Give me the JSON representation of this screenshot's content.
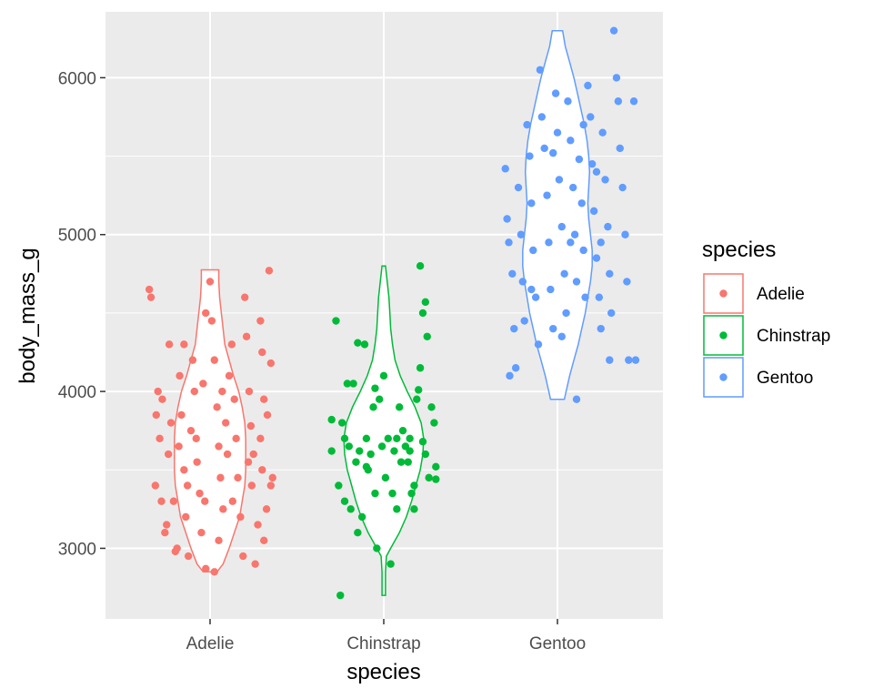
{
  "chart_data": {
    "type": "violin",
    "title": "",
    "xlabel": "species",
    "ylabel": "body_mass_g",
    "categories": [
      "Adelie",
      "Chinstrap",
      "Gentoo"
    ],
    "ylim": [
      2550,
      6420
    ],
    "yticks": [
      3000,
      4000,
      5000,
      6000
    ],
    "grid": true,
    "background": "#ebebeb",
    "legend": {
      "title": "species",
      "position": "right",
      "entries": [
        "Adelie",
        "Chinstrap",
        "Gentoo"
      ]
    },
    "colors": {
      "Adelie": "#F8766D",
      "Chinstrap": "#00BA38",
      "Gentoo": "#619CFF"
    },
    "series": [
      {
        "name": "Adelie",
        "violin": {
          "y": [
            2850,
            2900,
            3000,
            3100,
            3200,
            3300,
            3400,
            3500,
            3600,
            3700,
            3800,
            3900,
            4000,
            4100,
            4200,
            4300,
            4400,
            4500,
            4600,
            4700,
            4775
          ],
          "halfwidth": [
            0.08,
            0.15,
            0.22,
            0.28,
            0.34,
            0.37,
            0.4,
            0.41,
            0.41,
            0.41,
            0.4,
            0.37,
            0.33,
            0.27,
            0.22,
            0.17,
            0.15,
            0.13,
            0.11,
            0.1,
            0.1
          ]
        },
        "points": [
          [
            -0.7,
            4650
          ],
          [
            -0.68,
            4600
          ],
          [
            -0.6,
            4000
          ],
          [
            -0.55,
            3950
          ],
          [
            -0.58,
            3700
          ],
          [
            -0.63,
            3400
          ],
          [
            -0.5,
            3150
          ],
          [
            -0.52,
            3100
          ],
          [
            -0.45,
            3800
          ],
          [
            -0.48,
            3600
          ],
          [
            -0.42,
            3300
          ],
          [
            -0.38,
            3000
          ],
          [
            -0.4,
            2980
          ],
          [
            -0.35,
            4100
          ],
          [
            -0.3,
            4300
          ],
          [
            -0.33,
            3850
          ],
          [
            -0.3,
            3500
          ],
          [
            -0.28,
            3200
          ],
          [
            -0.25,
            2950
          ],
          [
            -0.2,
            4200
          ],
          [
            -0.18,
            4000
          ],
          [
            -0.22,
            3750
          ],
          [
            -0.15,
            3550
          ],
          [
            -0.12,
            3350
          ],
          [
            -0.1,
            3100
          ],
          [
            -0.05,
            2870
          ],
          [
            0.0,
            4700
          ],
          [
            0.02,
            4450
          ],
          [
            0.05,
            4200
          ],
          [
            0.08,
            3900
          ],
          [
            0.1,
            3650
          ],
          [
            0.12,
            3450
          ],
          [
            0.15,
            3250
          ],
          [
            0.1,
            3050
          ],
          [
            0.05,
            2850
          ],
          [
            -0.05,
            4500
          ],
          [
            -0.08,
            4050
          ],
          [
            0.18,
            3800
          ],
          [
            0.2,
            3600
          ],
          [
            0.22,
            4100
          ],
          [
            0.25,
            4300
          ],
          [
            0.28,
            3950
          ],
          [
            0.3,
            3700
          ],
          [
            0.32,
            3450
          ],
          [
            0.35,
            3200
          ],
          [
            0.38,
            2950
          ],
          [
            0.4,
            4600
          ],
          [
            0.42,
            4350
          ],
          [
            0.45,
            4000
          ],
          [
            0.47,
            3780
          ],
          [
            0.5,
            3600
          ],
          [
            0.48,
            3400
          ],
          [
            0.55,
            3150
          ],
          [
            0.52,
            2900
          ],
          [
            0.58,
            4450
          ],
          [
            0.6,
            4250
          ],
          [
            0.62,
            3950
          ],
          [
            0.58,
            3700
          ],
          [
            0.6,
            3500
          ],
          [
            0.65,
            3250
          ],
          [
            0.62,
            3050
          ],
          [
            0.68,
            4770
          ],
          [
            0.7,
            4180
          ],
          [
            0.72,
            3450
          ],
          [
            0.7,
            3400
          ],
          [
            -0.62,
            3850
          ],
          [
            -0.56,
            3300
          ],
          [
            -0.47,
            4300
          ],
          [
            -0.36,
            3650
          ],
          [
            -0.26,
            3400
          ],
          [
            -0.16,
            3700
          ],
          [
            -0.06,
            3300
          ],
          [
            0.14,
            4000
          ],
          [
            0.26,
            3300
          ],
          [
            0.44,
            3550
          ],
          [
            0.66,
            3850
          ]
        ]
      },
      {
        "name": "Chinstrap",
        "violin": {
          "y": [
            2700,
            2850,
            2950,
            3000,
            3100,
            3200,
            3300,
            3400,
            3500,
            3600,
            3700,
            3800,
            3900,
            4000,
            4100,
            4200,
            4300,
            4400,
            4500,
            4600,
            4700,
            4800
          ],
          "halfwidth": [
            0.02,
            0.02,
            0.03,
            0.08,
            0.18,
            0.26,
            0.32,
            0.37,
            0.42,
            0.45,
            0.46,
            0.43,
            0.36,
            0.27,
            0.19,
            0.13,
            0.1,
            0.08,
            0.07,
            0.06,
            0.04,
            0.02
          ]
        },
        "points": [
          [
            -0.6,
            3820
          ],
          [
            -0.6,
            3620
          ],
          [
            -0.55,
            4450
          ],
          [
            -0.52,
            3400
          ],
          [
            -0.48,
            3800
          ],
          [
            -0.45,
            3300
          ],
          [
            -0.42,
            4050
          ],
          [
            -0.4,
            3650
          ],
          [
            -0.38,
            3250
          ],
          [
            -0.35,
            4050
          ],
          [
            -0.32,
            3550
          ],
          [
            -0.3,
            4310
          ],
          [
            -0.28,
            3620
          ],
          [
            -0.25,
            3200
          ],
          [
            -0.22,
            4300
          ],
          [
            -0.2,
            3700
          ],
          [
            -0.18,
            3500
          ],
          [
            -0.15,
            3600
          ],
          [
            -0.12,
            3900
          ],
          [
            -0.1,
            3350
          ],
          [
            -0.08,
            3000
          ],
          [
            -0.05,
            3950
          ],
          [
            -0.02,
            3650
          ],
          [
            0.0,
            4100
          ],
          [
            0.02,
            3450
          ],
          [
            0.05,
            3700
          ],
          [
            0.08,
            2900
          ],
          [
            0.1,
            3350
          ],
          [
            0.12,
            3620
          ],
          [
            0.15,
            3250
          ],
          [
            0.18,
            3900
          ],
          [
            0.2,
            3550
          ],
          [
            0.22,
            3750
          ],
          [
            0.25,
            3650
          ],
          [
            0.28,
            3550
          ],
          [
            0.3,
            3700
          ],
          [
            0.32,
            3350
          ],
          [
            0.35,
            3400
          ],
          [
            0.38,
            3950
          ],
          [
            0.4,
            4010
          ],
          [
            0.42,
            4150
          ],
          [
            0.45,
            4500
          ],
          [
            0.48,
            4570
          ],
          [
            0.5,
            4350
          ],
          [
            0.55,
            3900
          ],
          [
            0.58,
            3800
          ],
          [
            0.6,
            3520
          ],
          [
            0.6,
            3440
          ],
          [
            0.42,
            4800
          ],
          [
            0.35,
            3250
          ],
          [
            0.3,
            3620
          ],
          [
            -0.5,
            2700
          ],
          [
            0.45,
            3680
          ],
          [
            0.48,
            3600
          ],
          [
            0.52,
            3450
          ],
          [
            -0.3,
            3100
          ],
          [
            -0.1,
            4020
          ],
          [
            0.15,
            3700
          ],
          [
            -0.2,
            3520
          ],
          [
            -0.45,
            3700
          ]
        ]
      },
      {
        "name": "Gentoo",
        "violin": {
          "y": [
            3950,
            4000,
            4100,
            4200,
            4300,
            4400,
            4500,
            4600,
            4700,
            4800,
            4900,
            5000,
            5100,
            5200,
            5300,
            5400,
            5500,
            5600,
            5700,
            5800,
            5900,
            6000,
            6100,
            6200,
            6300
          ],
          "halfwidth": [
            0.08,
            0.1,
            0.14,
            0.19,
            0.24,
            0.28,
            0.32,
            0.35,
            0.38,
            0.4,
            0.4,
            0.38,
            0.36,
            0.35,
            0.36,
            0.37,
            0.36,
            0.34,
            0.31,
            0.27,
            0.23,
            0.19,
            0.14,
            0.09,
            0.06
          ]
        },
        "points": [
          [
            -0.6,
            5420
          ],
          [
            -0.58,
            5100
          ],
          [
            -0.56,
            4950
          ],
          [
            -0.52,
            4750
          ],
          [
            -0.5,
            4400
          ],
          [
            -0.48,
            4150
          ],
          [
            -0.45,
            5300
          ],
          [
            -0.42,
            5000
          ],
          [
            -0.4,
            4700
          ],
          [
            -0.38,
            4450
          ],
          [
            -0.35,
            5700
          ],
          [
            -0.32,
            5500
          ],
          [
            -0.3,
            5200
          ],
          [
            -0.28,
            4900
          ],
          [
            -0.25,
            4600
          ],
          [
            -0.22,
            4300
          ],
          [
            -0.2,
            6050
          ],
          [
            -0.18,
            5750
          ],
          [
            -0.15,
            5550
          ],
          [
            -0.12,
            5250
          ],
          [
            -0.1,
            4950
          ],
          [
            -0.08,
            4650
          ],
          [
            -0.05,
            4400
          ],
          [
            -0.02,
            5900
          ],
          [
            0.0,
            5650
          ],
          [
            0.02,
            5350
          ],
          [
            0.05,
            5050
          ],
          [
            0.08,
            4750
          ],
          [
            0.1,
            4500
          ],
          [
            0.12,
            5850
          ],
          [
            0.15,
            5600
          ],
          [
            0.18,
            5300
          ],
          [
            0.2,
            5000
          ],
          [
            0.22,
            4700
          ],
          [
            0.25,
            5480
          ],
          [
            0.28,
            5200
          ],
          [
            0.3,
            4900
          ],
          [
            0.32,
            4600
          ],
          [
            0.35,
            5950
          ],
          [
            0.38,
            5750
          ],
          [
            0.4,
            5450
          ],
          [
            0.42,
            5150
          ],
          [
            0.45,
            4850
          ],
          [
            0.48,
            4600
          ],
          [
            0.5,
            4400
          ],
          [
            0.52,
            5650
          ],
          [
            0.55,
            5350
          ],
          [
            0.58,
            5050
          ],
          [
            0.6,
            4750
          ],
          [
            0.62,
            4500
          ],
          [
            0.65,
            6300
          ],
          [
            0.68,
            6000
          ],
          [
            0.7,
            5850
          ],
          [
            0.72,
            5550
          ],
          [
            0.75,
            5300
          ],
          [
            0.78,
            5000
          ],
          [
            0.8,
            4700
          ],
          [
            0.82,
            4200
          ],
          [
            0.88,
            5850
          ],
          [
            0.9,
            4200
          ],
          [
            0.05,
            4350
          ],
          [
            0.22,
            3950
          ],
          [
            0.6,
            4200
          ],
          [
            -0.55,
            4100
          ],
          [
            -0.05,
            5520
          ],
          [
            0.15,
            4950
          ],
          [
            0.3,
            5700
          ],
          [
            0.45,
            5400
          ],
          [
            -0.3,
            4650
          ],
          [
            0.5,
            4950
          ]
        ]
      }
    ]
  }
}
